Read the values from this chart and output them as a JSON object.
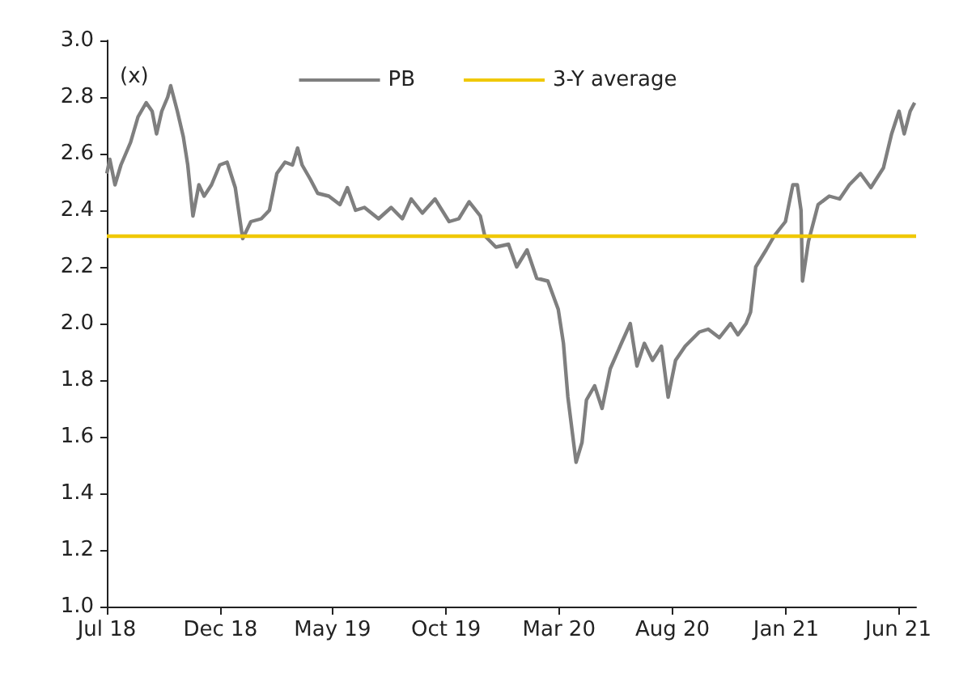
{
  "chart_data": {
    "type": "line",
    "ylabel": "(x)",
    "legend": "top",
    "grid": false,
    "marker": "none",
    "line_style": "solid",
    "xlim": [
      "2018-07-01",
      "2021-06-25"
    ],
    "xticks": [
      {
        "value": "2018-07-01",
        "label": "Jul 18"
      },
      {
        "value": "2018-12-01",
        "label": "Dec 18"
      },
      {
        "value": "2019-05-01",
        "label": "May 19"
      },
      {
        "value": "2019-10-01",
        "label": "Oct 19"
      },
      {
        "value": "2020-03-01",
        "label": "Mar 20"
      },
      {
        "value": "2020-08-01",
        "label": "Aug 20"
      },
      {
        "value": "2021-01-01",
        "label": "Jan 21"
      },
      {
        "value": "2021-06-01",
        "label": "Jun 21"
      }
    ],
    "ylim": [
      1,
      3
    ],
    "yticks": [
      {
        "value": 1,
        "label": "1.0"
      },
      {
        "value": 1.2,
        "label": "1.2"
      },
      {
        "value": 1.4,
        "label": "1.4"
      },
      {
        "value": 1.6,
        "label": "1.6"
      },
      {
        "value": 1.8,
        "label": "1.8"
      },
      {
        "value": 2,
        "label": "2.0"
      },
      {
        "value": 2.2,
        "label": "2.2"
      },
      {
        "value": 2.4,
        "label": "2.4"
      },
      {
        "value": 2.6,
        "label": "2.6"
      },
      {
        "value": 2.8,
        "label": "2.8"
      },
      {
        "value": 3,
        "label": "3.0"
      }
    ],
    "ref_lines": [
      {
        "axis": "y",
        "value": 2.31,
        "label": "3-Y average",
        "color": "#f0c800"
      }
    ],
    "series": [
      {
        "name": "PB",
        "color": "#7f7f7f",
        "x": [
          "2018-07-01",
          "2018-07-05",
          "2018-07-12",
          "2018-07-20",
          "2018-08-02",
          "2018-08-12",
          "2018-08-23",
          "2018-08-31",
          "2018-09-06",
          "2018-09-13",
          "2018-09-21",
          "2018-09-25",
          "2018-10-04",
          "2018-10-12",
          "2018-10-18",
          "2018-10-25",
          "2018-11-02",
          "2018-11-09",
          "2018-11-19",
          "2018-11-30",
          "2018-12-10",
          "2018-12-21",
          "2018-12-31",
          "2019-01-11",
          "2019-01-25",
          "2019-02-05",
          "2019-02-15",
          "2019-02-26",
          "2019-03-08",
          "2019-03-15",
          "2019-03-21",
          "2019-04-01",
          "2019-04-11",
          "2019-04-26",
          "2019-05-11",
          "2019-05-21",
          "2019-06-01",
          "2019-06-13",
          "2019-07-02",
          "2019-07-19",
          "2019-08-03",
          "2019-08-15",
          "2019-08-30",
          "2019-09-16",
          "2019-10-05",
          "2019-10-18",
          "2019-11-01",
          "2019-11-16",
          "2019-11-22",
          "2019-12-07",
          "2019-12-24",
          "2020-01-04",
          "2020-01-18",
          "2020-01-31",
          "2020-02-15",
          "2020-02-29",
          "2020-03-07",
          "2020-03-13",
          "2020-03-24",
          "2020-04-01",
          "2020-04-07",
          "2020-04-18",
          "2020-04-28",
          "2020-05-09",
          "2020-05-24",
          "2020-06-05",
          "2020-06-14",
          "2020-06-24",
          "2020-07-05",
          "2020-07-17",
          "2020-07-26",
          "2020-08-05",
          "2020-08-18",
          "2020-09-06",
          "2020-09-18",
          "2020-10-03",
          "2020-10-18",
          "2020-10-28",
          "2020-11-08",
          "2020-11-14",
          "2020-11-21",
          "2020-12-05",
          "2020-12-16",
          "2020-12-31",
          "2021-01-10",
          "2021-01-16",
          "2021-01-21",
          "2021-01-23",
          "2021-01-31",
          "2021-02-13",
          "2021-02-28",
          "2021-03-14",
          "2021-03-27",
          "2021-04-11",
          "2021-04-25",
          "2021-05-12",
          "2021-05-23",
          "2021-06-02",
          "2021-06-09",
          "2021-06-17",
          "2021-06-23"
        ],
        "values": [
          2.53,
          2.58,
          2.49,
          2.56,
          2.64,
          2.73,
          2.78,
          2.75,
          2.67,
          2.75,
          2.8,
          2.84,
          2.75,
          2.66,
          2.56,
          2.38,
          2.49,
          2.45,
          2.49,
          2.56,
          2.57,
          2.48,
          2.3,
          2.36,
          2.37,
          2.4,
          2.53,
          2.57,
          2.56,
          2.62,
          2.56,
          2.51,
          2.46,
          2.45,
          2.42,
          2.48,
          2.4,
          2.41,
          2.37,
          2.41,
          2.37,
          2.44,
          2.39,
          2.44,
          2.36,
          2.37,
          2.43,
          2.38,
          2.31,
          2.27,
          2.28,
          2.2,
          2.26,
          2.16,
          2.15,
          2.05,
          1.93,
          1.74,
          1.51,
          1.58,
          1.73,
          1.78,
          1.7,
          1.84,
          1.93,
          2.0,
          1.85,
          1.93,
          1.87,
          1.92,
          1.74,
          1.87,
          1.92,
          1.97,
          1.98,
          1.95,
          2.0,
          1.96,
          2.0,
          2.04,
          2.2,
          2.26,
          2.31,
          2.36,
          2.49,
          2.49,
          2.4,
          2.15,
          2.29,
          2.42,
          2.45,
          2.44,
          2.49,
          2.53,
          2.48,
          2.55,
          2.67,
          2.75,
          2.67,
          2.75,
          2.78
        ]
      }
    ]
  }
}
